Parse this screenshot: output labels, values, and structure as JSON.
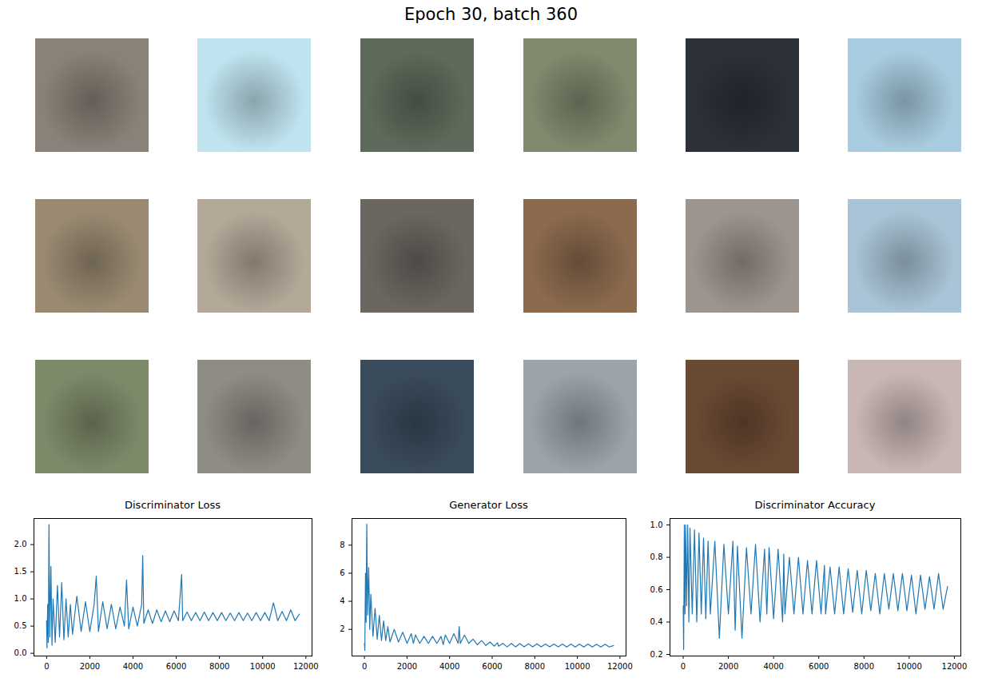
{
  "title": "Epoch 30, batch 360",
  "sample_images": [
    "#8a8278",
    "#bfe3ef",
    "#5e6a5a",
    "#7f8a6e",
    "#2c3138",
    "#a9cde0",
    "#9a8a72",
    "#b4a898",
    "#6c6660",
    "#8b6a4e",
    "#9d958d",
    "#a9c4d6",
    "#7d8a6a",
    "#8f8c85",
    "#3a4b5c",
    "#9aa4aa",
    "#6b4a34",
    "#c9b7b5"
  ],
  "chart_data": [
    {
      "type": "line",
      "title": "Discriminator Loss",
      "color": "#1f77b4",
      "x": [
        0,
        20,
        50,
        80,
        110,
        150,
        200,
        250,
        300,
        400,
        500,
        600,
        700,
        800,
        900,
        1000,
        1100,
        1200,
        1400,
        1600,
        1800,
        2000,
        2200,
        2300,
        2400,
        2600,
        2800,
        3000,
        3200,
        3400,
        3600,
        3700,
        3800,
        4000,
        4200,
        4400,
        4450,
        4500,
        4700,
        4900,
        5100,
        5300,
        5500,
        5700,
        5900,
        6100,
        6250,
        6300,
        6500,
        6700,
        6900,
        7100,
        7300,
        7500,
        7700,
        7900,
        8100,
        8300,
        8500,
        8700,
        8900,
        9100,
        9300,
        9500,
        9700,
        9900,
        10100,
        10300,
        10500,
        10700,
        10900,
        11100,
        11300,
        11500,
        11700
      ],
      "values": [
        0.6,
        0.1,
        0.9,
        0.2,
        2.37,
        0.3,
        1.6,
        0.15,
        1.0,
        0.2,
        1.25,
        0.3,
        1.3,
        0.25,
        1.0,
        0.3,
        0.9,
        0.35,
        1.05,
        0.4,
        0.95,
        0.4,
        0.9,
        1.42,
        0.4,
        0.95,
        0.45,
        0.9,
        0.45,
        0.85,
        0.5,
        1.35,
        0.45,
        0.85,
        0.5,
        0.9,
        1.8,
        0.55,
        0.8,
        0.55,
        0.8,
        0.58,
        0.78,
        0.58,
        0.78,
        0.6,
        1.45,
        0.6,
        0.76,
        0.6,
        0.75,
        0.6,
        0.76,
        0.6,
        0.75,
        0.6,
        0.75,
        0.6,
        0.74,
        0.6,
        0.75,
        0.6,
        0.74,
        0.6,
        0.75,
        0.6,
        0.75,
        0.6,
        0.93,
        0.6,
        0.77,
        0.6,
        0.8,
        0.6,
        0.72
      ],
      "xlim": [
        -585,
        12285
      ],
      "xticks": [
        0,
        2000,
        4000,
        6000,
        8000,
        10000,
        12000
      ],
      "ylim": [
        -0.05,
        2.48
      ],
      "yticks": [
        {
          "value": 0,
          "label": "0.0"
        },
        0.5,
        {
          "value": 1,
          "label": "1.0"
        },
        1.5,
        {
          "value": 2,
          "label": "2.0"
        }
      ]
    },
    {
      "type": "line",
      "title": "Generator Loss",
      "color": "#1f77b4",
      "x": [
        0,
        20,
        50,
        80,
        110,
        150,
        200,
        250,
        300,
        400,
        500,
        600,
        700,
        800,
        900,
        1000,
        1100,
        1200,
        1400,
        1600,
        1800,
        2000,
        2200,
        2300,
        2400,
        2600,
        2800,
        3000,
        3200,
        3400,
        3600,
        3700,
        3800,
        4000,
        4200,
        4400,
        4450,
        4500,
        4700,
        4900,
        5100,
        5300,
        5500,
        5700,
        5900,
        6100,
        6250,
        6300,
        6500,
        6700,
        6900,
        7100,
        7300,
        7500,
        7700,
        7900,
        8100,
        8300,
        8500,
        8700,
        8900,
        9100,
        9300,
        9500,
        9700,
        9900,
        10100,
        10300,
        10500,
        10700,
        10900,
        11100,
        11300,
        11500,
        11700
      ],
      "values": [
        1.0,
        0.5,
        6,
        2.5,
        9.5,
        3,
        6.4,
        2,
        4.5,
        1.5,
        3.5,
        1.3,
        3.0,
        1.2,
        2.6,
        1.2,
        2.2,
        1.1,
        2.0,
        1.1,
        1.8,
        1.0,
        1.7,
        1.0,
        1.6,
        1.0,
        1.5,
        1.0,
        1.5,
        1.0,
        1.5,
        0.9,
        1.6,
        1.0,
        1.7,
        1.0,
        2.2,
        1.0,
        1.6,
        1.0,
        1.3,
        0.9,
        1.2,
        0.85,
        1.1,
        0.8,
        1.05,
        0.8,
        1.0,
        0.75,
        1.0,
        0.75,
        0.98,
        0.75,
        0.97,
        0.75,
        0.97,
        0.75,
        0.96,
        0.75,
        0.95,
        0.75,
        0.95,
        0.74,
        0.95,
        0.74,
        0.95,
        0.74,
        0.95,
        0.74,
        0.94,
        0.74,
        0.94,
        0.74,
        0.85
      ],
      "xlim": [
        -585,
        12285
      ],
      "xticks": [
        0,
        2000,
        4000,
        6000,
        8000,
        10000,
        12000
      ],
      "ylim": [
        0.1,
        9.9
      ],
      "yticks": [
        2,
        4,
        6,
        8
      ]
    },
    {
      "type": "line",
      "title": "Discriminator Accuracy",
      "color": "#1f77b4",
      "x": [
        0,
        20,
        50,
        80,
        110,
        150,
        200,
        250,
        300,
        400,
        500,
        600,
        700,
        800,
        900,
        1000,
        1100,
        1200,
        1400,
        1600,
        1800,
        2000,
        2200,
        2300,
        2400,
        2600,
        2800,
        3000,
        3200,
        3400,
        3600,
        3700,
        3800,
        4000,
        4200,
        4400,
        4450,
        4500,
        4700,
        4900,
        5100,
        5300,
        5500,
        5700,
        5900,
        6100,
        6250,
        6300,
        6500,
        6700,
        6900,
        7100,
        7300,
        7500,
        7700,
        7900,
        8100,
        8300,
        8500,
        8700,
        8900,
        9100,
        9300,
        9500,
        9700,
        9900,
        10100,
        10300,
        10500,
        10700,
        10900,
        11100,
        11300,
        11500,
        11700
      ],
      "values": [
        0.5,
        0.23,
        1.0,
        0.45,
        1.0,
        0.5,
        1.0,
        0.4,
        0.98,
        0.45,
        0.97,
        0.4,
        0.95,
        0.45,
        0.92,
        0.42,
        0.9,
        0.45,
        0.9,
        0.3,
        0.88,
        0.45,
        0.9,
        0.35,
        0.87,
        0.3,
        0.86,
        0.45,
        0.88,
        0.4,
        0.85,
        0.45,
        0.86,
        0.42,
        0.85,
        0.4,
        0.82,
        0.45,
        0.8,
        0.45,
        0.8,
        0.45,
        0.78,
        0.45,
        0.78,
        0.45,
        0.75,
        0.45,
        0.74,
        0.45,
        0.74,
        0.45,
        0.73,
        0.46,
        0.72,
        0.45,
        0.72,
        0.47,
        0.7,
        0.45,
        0.7,
        0.48,
        0.7,
        0.47,
        0.7,
        0.47,
        0.69,
        0.45,
        0.69,
        0.48,
        0.68,
        0.48,
        0.7,
        0.48,
        0.62
      ],
      "xlim": [
        -585,
        12285
      ],
      "xticks": [
        0,
        2000,
        4000,
        6000,
        8000,
        10000,
        12000
      ],
      "ylim": [
        0.19,
        1.04
      ],
      "yticks": [
        0.2,
        0.4,
        0.6,
        0.8,
        {
          "value": 1,
          "label": "1.0"
        }
      ]
    }
  ]
}
